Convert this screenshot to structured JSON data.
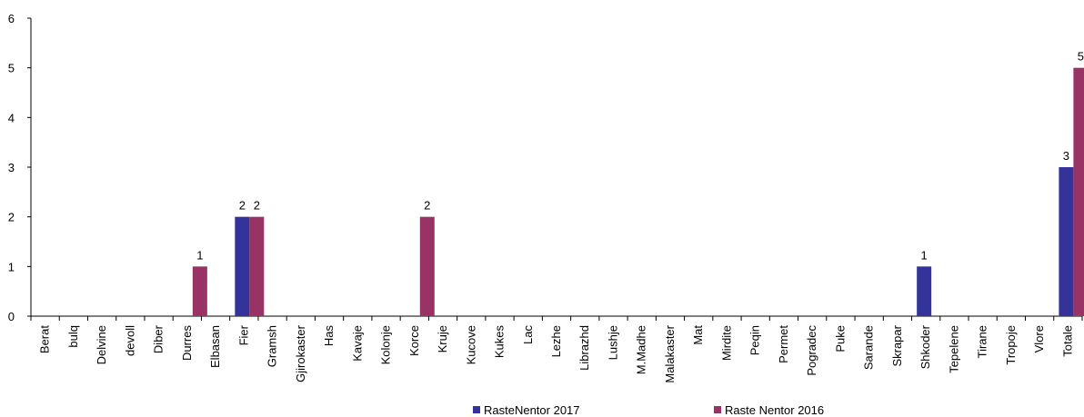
{
  "chart_data": {
    "type": "bar",
    "categories": [
      "Berat",
      "bulq",
      "Delvine",
      "devoll",
      "Diber",
      "Durres",
      "Elbasan",
      "Fier",
      "Gramsh",
      "Gjirokaster",
      "Has",
      "Kavaje",
      "Kolonje",
      "Korce",
      "Kruje",
      "Kucove",
      "Kukes",
      "Lac",
      "Lezhe",
      "Librazhd",
      "Lushje",
      "M.Madhe",
      "Malakaster",
      "Mat",
      "Mirdite",
      "Peqin",
      "Permet",
      "Pogradec",
      "Puke",
      "Sarande",
      "Skrapar",
      "Shkoder",
      "Tepelene",
      "Tirane",
      "Tropoje",
      "Vlore",
      "Totale"
    ],
    "series": [
      {
        "name": "RasteNentor 2017",
        "color": "#333399",
        "values": [
          0,
          0,
          0,
          0,
          0,
          0,
          0,
          2,
          0,
          0,
          0,
          0,
          0,
          0,
          0,
          0,
          0,
          0,
          0,
          0,
          0,
          0,
          0,
          0,
          0,
          0,
          0,
          0,
          0,
          0,
          0,
          1,
          0,
          0,
          0,
          0,
          3
        ]
      },
      {
        "name": "Raste Nentor 2016",
        "color": "#993366",
        "values": [
          0,
          0,
          0,
          0,
          0,
          1,
          0,
          2,
          0,
          0,
          0,
          0,
          0,
          2,
          0,
          0,
          0,
          0,
          0,
          0,
          0,
          0,
          0,
          0,
          0,
          0,
          0,
          0,
          0,
          0,
          0,
          0,
          0,
          0,
          0,
          0,
          5
        ]
      }
    ],
    "yticks": [
      "0",
      "1",
      "2",
      "3",
      "4",
      "5",
      "6"
    ],
    "ylim": [
      0,
      6
    ],
    "grid": false,
    "legend_position": "bottom"
  }
}
